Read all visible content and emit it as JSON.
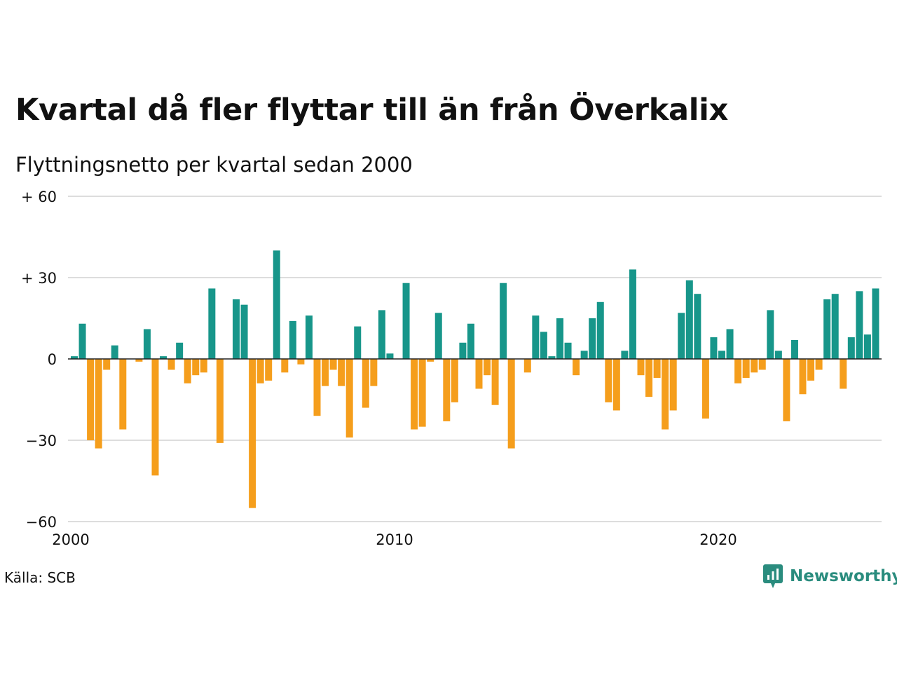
{
  "header": {
    "title": "Kvartal då fler flyttar till än från Överkalix",
    "subtitle": "Flyttningsnetto per kvartal sedan 2000"
  },
  "footer": {
    "source": "Källa: SCB",
    "brand": "Newsworthy",
    "brand_icon": "newsworthy-logo-icon"
  },
  "colors": {
    "positive": "#17968a",
    "negative": "#f59e1c",
    "grid": "#dddddd",
    "baseline": "#222222",
    "brand": "#2a8c7e"
  },
  "chart_data": {
    "type": "bar",
    "title": "Kvartal då fler flyttar till än från Överkalix",
    "subtitle": "Flyttningsnetto per kvartal sedan 2000",
    "x_start": "2000 Q1",
    "x_frequency": "quarter",
    "ylim": [
      -60,
      60
    ],
    "y_ticks": [
      {
        "value": 60,
        "label": "+ 60"
      },
      {
        "value": 30,
        "label": "+ 30"
      },
      {
        "value": 0,
        "label": "0"
      },
      {
        "value": -30,
        "label": "−30"
      },
      {
        "value": -60,
        "label": "−60"
      }
    ],
    "x_ticks": [
      {
        "year": 2000,
        "label": "2000"
      },
      {
        "year": 2010,
        "label": "2010"
      },
      {
        "year": 2020,
        "label": "2020"
      }
    ],
    "grid": true,
    "legend": "none",
    "values": [
      1,
      13,
      -30,
      -33,
      -4,
      5,
      -26,
      0,
      -1,
      11,
      -43,
      1,
      -4,
      6,
      -9,
      -6,
      -5,
      26,
      -31,
      0,
      22,
      20,
      -55,
      -9,
      -8,
      40,
      -5,
      14,
      -2,
      16,
      -21,
      -10,
      -4,
      -10,
      -29,
      12,
      -18,
      -10,
      18,
      2,
      0,
      28,
      -26,
      -25,
      -1,
      17,
      -23,
      -16,
      6,
      13,
      -11,
      -6,
      -17,
      28,
      -33,
      0,
      -5,
      16,
      10,
      1,
      15,
      6,
      -6,
      3,
      15,
      21,
      -16,
      -19,
      3,
      33,
      -6,
      -14,
      -7,
      -26,
      -19,
      17,
      29,
      24,
      -22,
      8,
      3,
      11,
      -9,
      -7,
      -5,
      -4,
      18,
      3,
      -23,
      7,
      -13,
      -8,
      -4,
      22,
      24,
      -11,
      8,
      25,
      9,
      26
    ]
  }
}
